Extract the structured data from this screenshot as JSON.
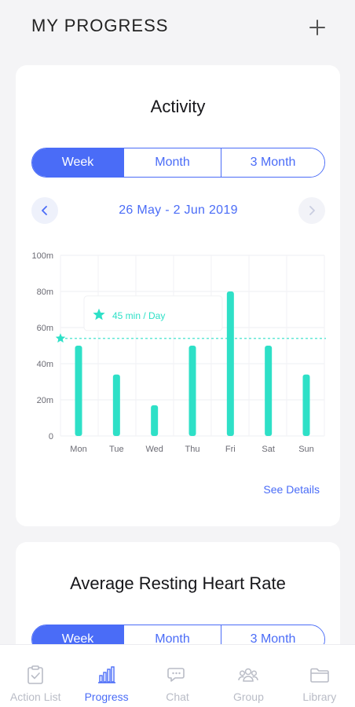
{
  "header": {
    "title": "MY PROGRESS",
    "add_icon": "plus-icon"
  },
  "activity": {
    "title": "Activity",
    "segments": [
      "Week",
      "Month",
      "3 Month"
    ],
    "active_segment": "Week",
    "date_range": "26 May - 2 Jun 2019",
    "see_details": "See Details",
    "tooltip": "45 min / Day"
  },
  "chart_data": {
    "type": "bar",
    "categories": [
      "Mon",
      "Tue",
      "Wed",
      "Thu",
      "Fri",
      "Sat",
      "Sun"
    ],
    "values": [
      50,
      34,
      17,
      50,
      80,
      50,
      34
    ],
    "y_ticks": [
      "100m",
      "80m",
      "60m",
      "40m",
      "20m",
      "0"
    ],
    "ylim": [
      0,
      100
    ],
    "target": 54,
    "bar_color": "#2ee0c7",
    "grid": true
  },
  "heart": {
    "title": "Average Resting Heart Rate",
    "segments": [
      "Week",
      "Month",
      "3 Month"
    ]
  },
  "tabs": [
    {
      "label": "Action List",
      "icon": "clipboard-check-icon"
    },
    {
      "label": "Progress",
      "icon": "bar-chart-icon"
    },
    {
      "label": "Chat",
      "icon": "chat-bubble-icon"
    },
    {
      "label": "Group",
      "icon": "group-icon"
    },
    {
      "label": "Library",
      "icon": "folder-icon"
    }
  ],
  "active_tab": "Progress",
  "colors": {
    "accent": "#4a6cf7",
    "bar": "#2ee0c7",
    "inactive": "#b9bcc6"
  }
}
